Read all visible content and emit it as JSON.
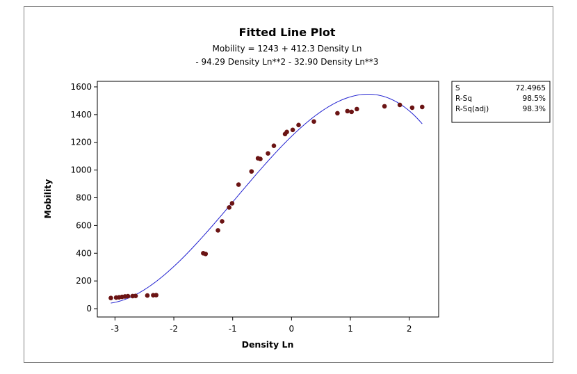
{
  "chart_data": {
    "type": "scatter",
    "title": "Fitted Line Plot",
    "subtitle_lines": [
      "Mobility =  1243 + 412.3 Density Ln",
      "- 94.29 Density Ln**2 - 32.90 Density Ln**3"
    ],
    "xlabel": "Density Ln",
    "ylabel": "Mobility",
    "xlim": [
      -3.3,
      2.5
    ],
    "ylim": [
      -60,
      1640
    ],
    "xticks": [
      -3,
      -2,
      -1,
      0,
      1,
      2
    ],
    "yticks": [
      0,
      200,
      400,
      600,
      800,
      1000,
      1200,
      1400,
      1600
    ],
    "grid": false,
    "points": [
      [
        -3.07,
        77
      ],
      [
        -2.98,
        80
      ],
      [
        -2.93,
        82
      ],
      [
        -2.88,
        85
      ],
      [
        -2.83,
        88
      ],
      [
        -2.78,
        90
      ],
      [
        -2.7,
        91
      ],
      [
        -2.65,
        92
      ],
      [
        -2.45,
        95
      ],
      [
        -2.35,
        97
      ],
      [
        -2.3,
        98
      ],
      [
        -1.5,
        400
      ],
      [
        -1.46,
        395
      ],
      [
        -1.25,
        565
      ],
      [
        -1.18,
        630
      ],
      [
        -1.06,
        730
      ],
      [
        -1.01,
        760
      ],
      [
        -0.9,
        895
      ],
      [
        -0.68,
        990
      ],
      [
        -0.57,
        1085
      ],
      [
        -0.53,
        1080
      ],
      [
        -0.4,
        1120
      ],
      [
        -0.3,
        1175
      ],
      [
        -0.11,
        1260
      ],
      [
        -0.08,
        1275
      ],
      [
        0.02,
        1290
      ],
      [
        0.12,
        1325
      ],
      [
        0.38,
        1350
      ],
      [
        0.78,
        1410
      ],
      [
        0.95,
        1425
      ],
      [
        1.02,
        1420
      ],
      [
        1.11,
        1440
      ],
      [
        1.58,
        1460
      ],
      [
        1.84,
        1470
      ],
      [
        2.05,
        1450
      ],
      [
        2.22,
        1455
      ]
    ],
    "fit": {
      "b0": 1243,
      "b1": 412.3,
      "b2": -94.29,
      "b3": -32.9,
      "x_range": [
        -3.07,
        2.22
      ]
    },
    "colors": {
      "points": "#6b1414",
      "fit_line": "#2020d0",
      "axes": "#000000"
    },
    "stats": [
      {
        "label": "S",
        "value": "72.4965"
      },
      {
        "label": "R-Sq",
        "value": "98.5%"
      },
      {
        "label": "R-Sq(adj)",
        "value": "98.3%"
      }
    ]
  }
}
